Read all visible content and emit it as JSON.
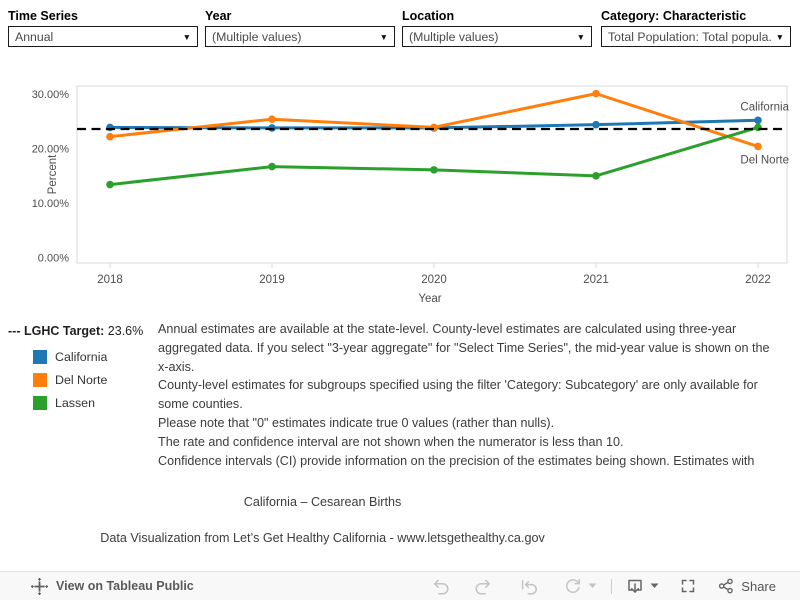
{
  "filters": [
    {
      "label": "Time Series",
      "value": "Annual"
    },
    {
      "label": "Year",
      "value": "(Multiple values)"
    },
    {
      "label": "Location",
      "value": "(Multiple values)"
    },
    {
      "label": "Category: Characteristic",
      "value": "Total Population: Total popula..."
    }
  ],
  "chart_data": {
    "type": "line",
    "x": [
      2018,
      2019,
      2020,
      2021,
      2022
    ],
    "series": [
      {
        "name": "California",
        "color": "#1f77b4",
        "values": [
          23.9,
          23.8,
          23.8,
          24.4,
          25.2
        ]
      },
      {
        "name": "Del Norte",
        "color": "#ff7f0e",
        "values": [
          22.2,
          25.4,
          23.9,
          30.1,
          20.4
        ]
      },
      {
        "name": "Lassen",
        "color": "#2ca02c",
        "values": [
          13.4,
          16.7,
          16.1,
          15.0,
          23.9
        ]
      }
    ],
    "target": {
      "prefix": "---",
      "label": "LGHC Target:",
      "value": 23.6,
      "display": "23.6%"
    },
    "ylabel": "Percent",
    "xlabel": "Year",
    "yticks": [
      {
        "v": 0,
        "label": "0.00%"
      },
      {
        "v": 10,
        "label": "10.00%"
      },
      {
        "v": 20,
        "label": "20.00%"
      },
      {
        "v": 30,
        "label": "30.00%"
      }
    ],
    "ylim": [
      -1,
      31.5
    ],
    "grid": false,
    "legend_position": "bottom-left",
    "end_labels": [
      "California",
      "Del Norte"
    ]
  },
  "legend": {
    "items": [
      {
        "label": "California",
        "color": "#1f77b4"
      },
      {
        "label": "Del Norte",
        "color": "#ff7f0e"
      },
      {
        "label": "Lassen",
        "color": "#2ca02c"
      }
    ]
  },
  "notes": {
    "lines": [
      "Annual estimates are available at the state-level. County-level estimates are calculated using three-year",
      "aggregated data. If you select \"3-year aggregate\" for \"Select Time Series\", the mid-year value is shown on the",
      "x-axis.",
      "County-level estimates for subgroups specified using the filter 'Category: Subcategory' are only available for",
      "some counties.",
      "Please note that \"0\" estimates indicate true 0 values (rather than nulls).",
      "The rate and confidence interval are not shown when the numerator is less than 10.",
      "Confidence intervals (CI) provide information on the precision of the estimates being shown. Estimates with"
    ]
  },
  "title": "California – Cesarean Births",
  "footer": "Data Visualization from Let’s Get Healthy California - www.letsgethealthy.ca.gov",
  "toolbar": {
    "view_on": "View on Tableau Public",
    "share": "Share"
  }
}
